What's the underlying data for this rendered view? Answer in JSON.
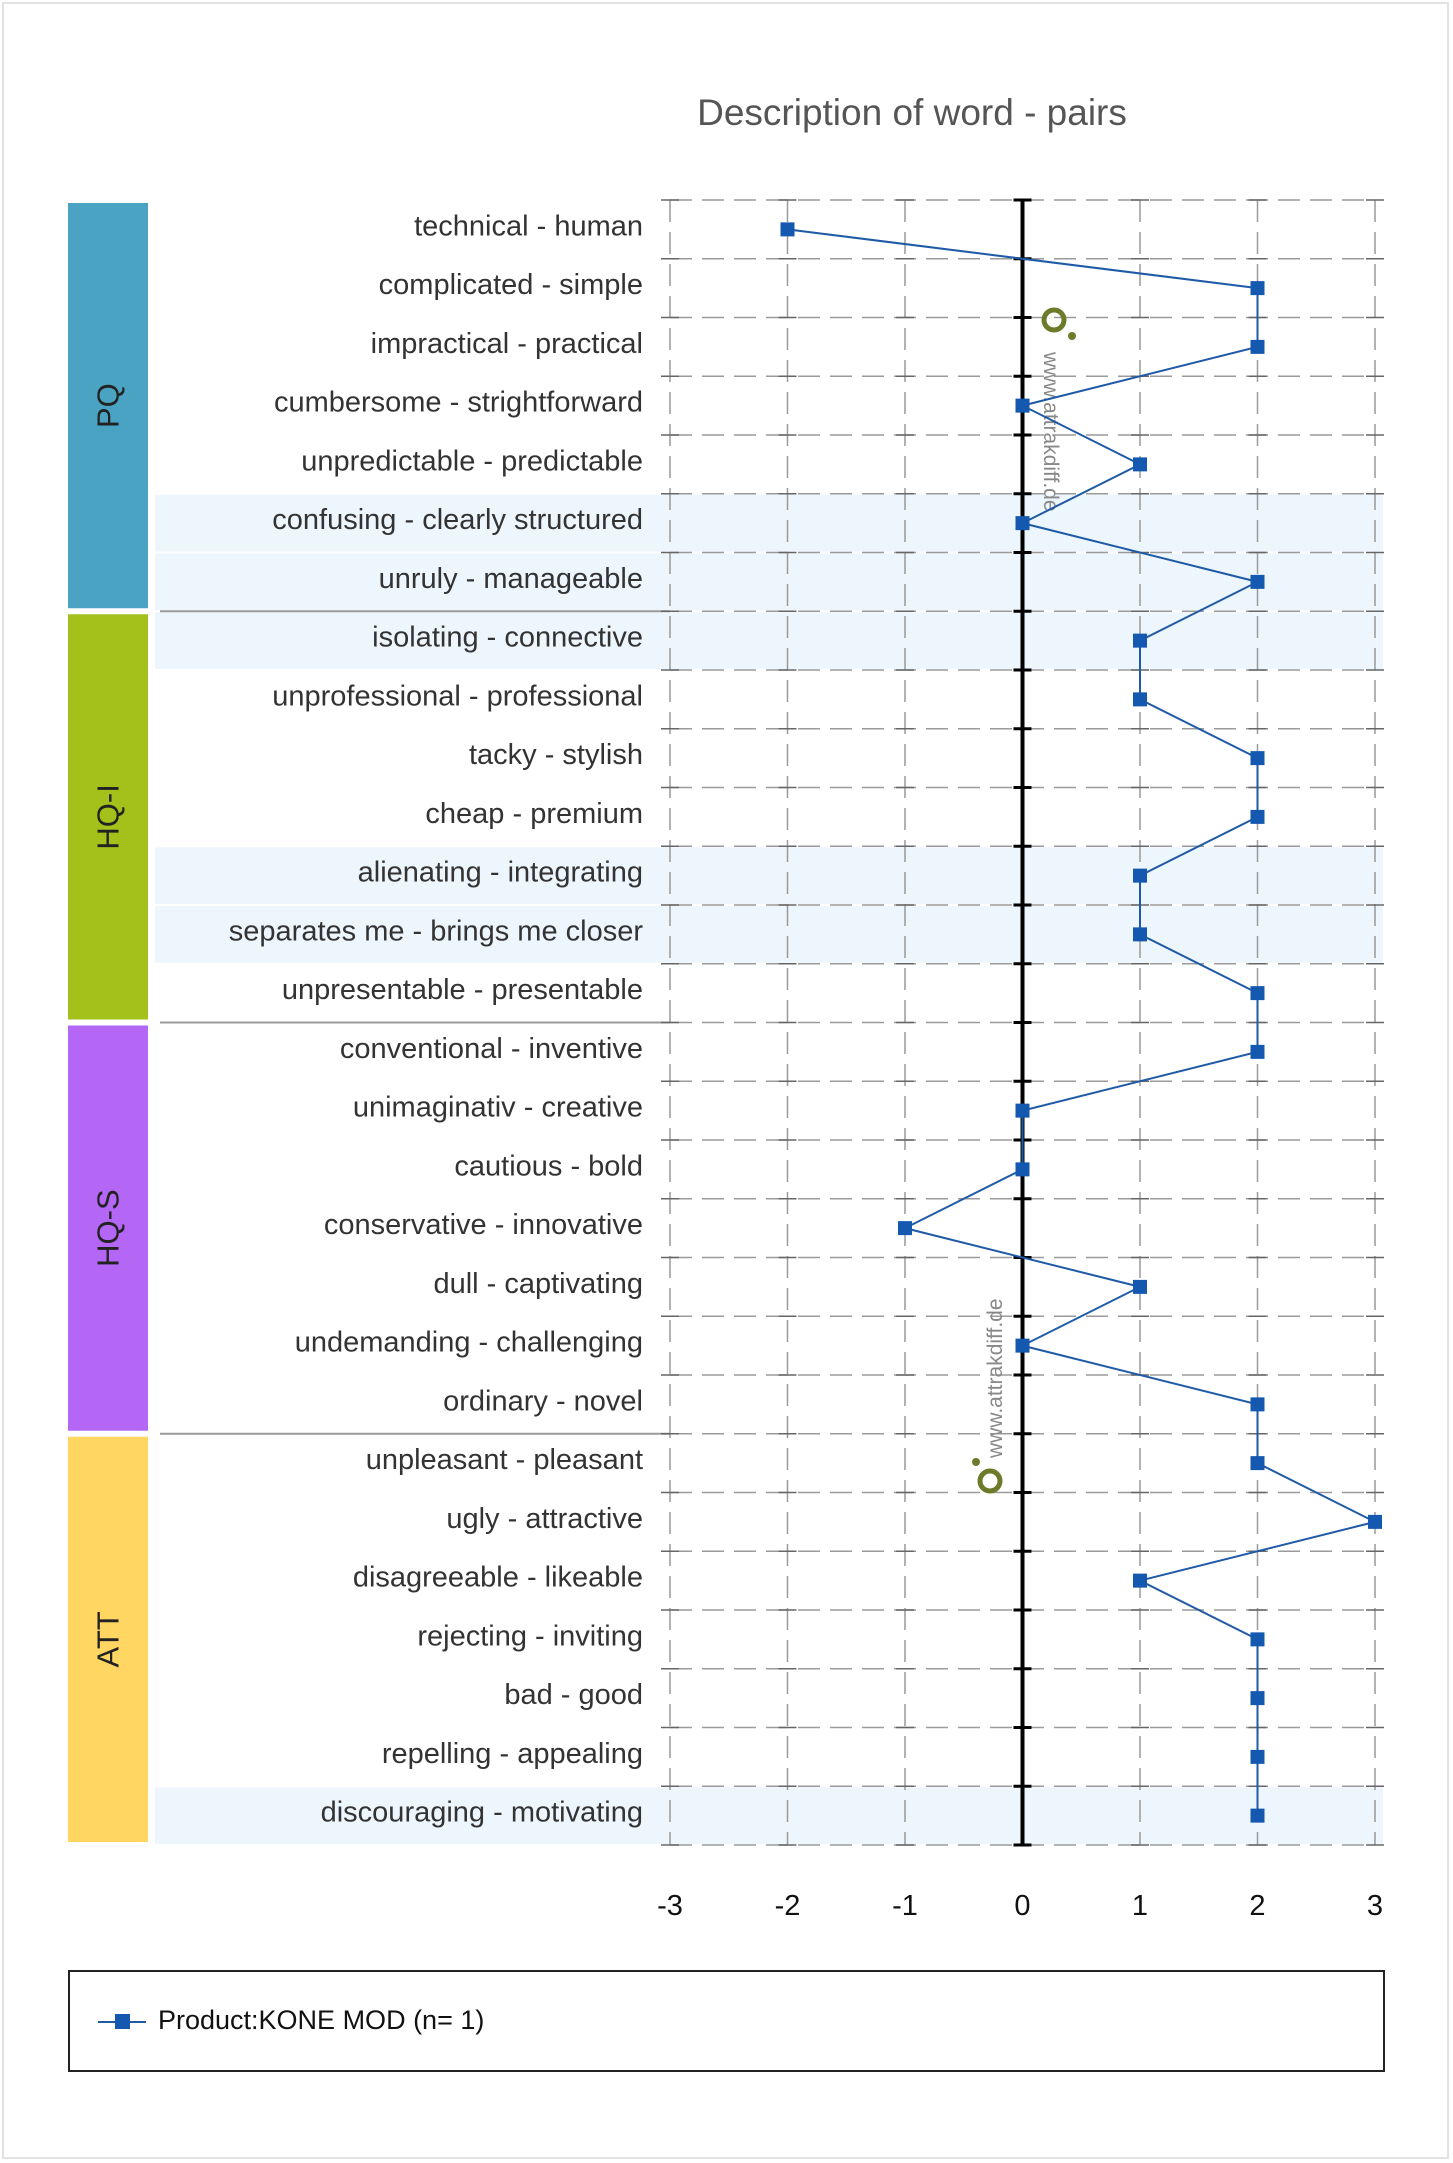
{
  "chart_data": {
    "type": "line",
    "title": "Description of word - pairs",
    "xlim": [
      -3,
      3
    ],
    "xticks": [
      "-3",
      "-2",
      "-1",
      "0",
      "1",
      "2",
      "3"
    ],
    "grid": true,
    "legend_position": "bottom",
    "groups": [
      {
        "label": "PQ",
        "color": "#4ba3c3",
        "start": 0,
        "end": 6
      },
      {
        "label": "HQ-I",
        "color": "#a3c11a",
        "start": 7,
        "end": 13
      },
      {
        "label": "HQ-S",
        "color": "#b466f5",
        "start": 14,
        "end": 20
      },
      {
        "label": "ATT",
        "color": "#ffd662",
        "start": 21,
        "end": 27
      }
    ],
    "categories": [
      "technical - human",
      "complicated - simple",
      "impractical - practical",
      "cumbersome - strightforward",
      "unpredictable - predictable",
      "confusing - clearly structured",
      "unruly - manageable",
      "isolating - connective",
      "unprofessional - professional",
      "tacky - stylish",
      "cheap - premium",
      "alienating - integrating",
      "separates me - brings me closer",
      "unpresentable - presentable",
      "conventional - inventive",
      "unimaginativ - creative",
      "cautious - bold",
      "conservative - innovative",
      "dull - captivating",
      "undemanding - challenging",
      "ordinary - novel",
      "unpleasant - pleasant",
      "ugly - attractive",
      "disagreeable - likeable",
      "rejecting - inviting",
      "bad - good",
      "repelling - appealing",
      "discouraging - motivating"
    ],
    "highlighted_rows": [
      5,
      6,
      7,
      11,
      12,
      27
    ],
    "series": [
      {
        "name": "Product:KONE MOD (n=1)",
        "color": "#1458b0",
        "values": [
          -2,
          2,
          2,
          0,
          1,
          0,
          2,
          1,
          1,
          2,
          2,
          1,
          1,
          2,
          2,
          0,
          0,
          -1,
          1,
          0,
          2,
          2,
          3,
          1,
          2,
          2,
          2,
          2
        ]
      }
    ],
    "watermark": "www.attrakdiff.de"
  },
  "legend": {
    "label": "Product:KONE MOD (n= 1)"
  }
}
